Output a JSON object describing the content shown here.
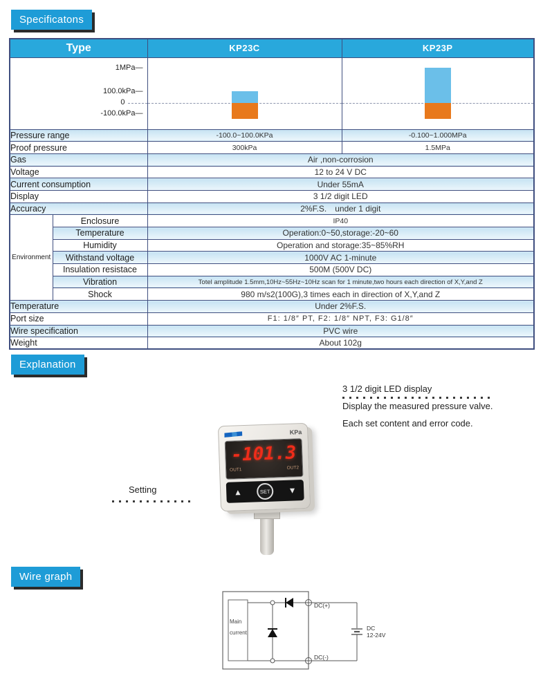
{
  "sections": {
    "spec_title": "Specificatons",
    "explanation_title": "Explanation",
    "wire_title": "Wire graph"
  },
  "colors": {
    "accent_blue": "#1e9cd7",
    "header_blue": "#29a8dc",
    "row_light_blue": "#d3eaf7",
    "border_navy": "#3f4e7f",
    "bar_positive": "#6bbfe9",
    "bar_negative": "#e8791c",
    "led_red": "#ef2c1a"
  },
  "spec_table": {
    "header": {
      "type": "Type",
      "kp23c": "KP23C",
      "kp23p": "KP23P"
    },
    "axis": {
      "tick1": "1MPa—",
      "tick2": "100.0kPa—",
      "tick3": "0",
      "tick4": "-100.0kPa—"
    },
    "rows": {
      "pressure_range": {
        "label": "Pressure range",
        "kp23c": "-100.0~100.0KPa",
        "kp23p": "-0.100~1.000MPa"
      },
      "proof_pressure": {
        "label": "Proof pressure",
        "kp23c": "300kPa",
        "kp23p": "1.5MPa"
      },
      "gas": {
        "label": "Gas",
        "value": "Air ,non-corrosion"
      },
      "voltage": {
        "label": "Voltage",
        "value": "12 to 24 V DC"
      },
      "current": {
        "label": "Current consumption",
        "value": "Under 55mA"
      },
      "display": {
        "label": "Display",
        "value": "3 1/2 digit LED"
      },
      "accuracy": {
        "label": "Accuracy",
        "value": "2%F.S. under 1 digit"
      },
      "environment_label": "Environment",
      "enclosure": {
        "label": "Enclosure",
        "value": "IP40"
      },
      "temperature_env": {
        "label": "Temperature",
        "value": "Operation:0~50,storage:-20~60"
      },
      "humidity": {
        "label": "Humidity",
        "value": "Operation and storage:35~85%RH"
      },
      "withstand": {
        "label": "Withstand voltage",
        "value": "1000V AC 1-minute"
      },
      "insulation": {
        "label": "Insulation resistace",
        "value": "500M (500V DC)"
      },
      "vibration": {
        "label": "Vibration",
        "value": "Totel amplitude 1.5mm,10Hz~55Hz~10Hz scan for 1 minute,two hours each direction of X,Y,and Z"
      },
      "shock": {
        "label": "Shock",
        "value": "980 m/s2(100G),3 times each in direction of X,Y,and Z"
      },
      "temperature2": {
        "label": "Temperature",
        "value": "Under 2%F.S."
      },
      "port_size": {
        "label": "Port size",
        "value": "F1: 1/8″ PT, F2: 1/8″ NPT, F3: G1/8″"
      },
      "wire_spec": {
        "label": "Wire specification",
        "value": "PVC wire"
      },
      "weight": {
        "label": "Weight",
        "value": "About 102g"
      }
    }
  },
  "chart_data": {
    "type": "bar",
    "title": "Pressure range",
    "categories": [
      "KP23C",
      "KP23P"
    ],
    "axis_ticks": [
      "1MPa",
      "100.0kPa",
      "0",
      "-100.0kPa"
    ],
    "zero_line": "dashed",
    "series": [
      {
        "name": "KP23C",
        "range_label": "-100.0~100.0KPa",
        "min_kpa": -100,
        "max_kpa": 100
      },
      {
        "name": "KP23P",
        "range_label": "-0.100~1.000MPa",
        "min_kpa": -100,
        "max_kpa": 1000
      }
    ],
    "positive_color": "#6bbfe9",
    "negative_color": "#e8791c"
  },
  "explanation": {
    "led_caption": "3 1/2 digit LED display",
    "led_desc1": "Display the measured pressure valve.",
    "led_desc2": "Each set content and error code.",
    "setting_label": "Setting",
    "device": {
      "unit": "KPa",
      "display_value": "-101.3",
      "out1": "OUT1",
      "out2": "OUT2",
      "up": "▲",
      "set": "SET",
      "down": "▼"
    }
  },
  "wire_graph": {
    "main_line1": "Main",
    "main_line2": "current",
    "dc_plus": "DC(+)",
    "dc_minus": "DC(-)",
    "supply_line1": "DC",
    "supply_line2": "12-24V"
  }
}
